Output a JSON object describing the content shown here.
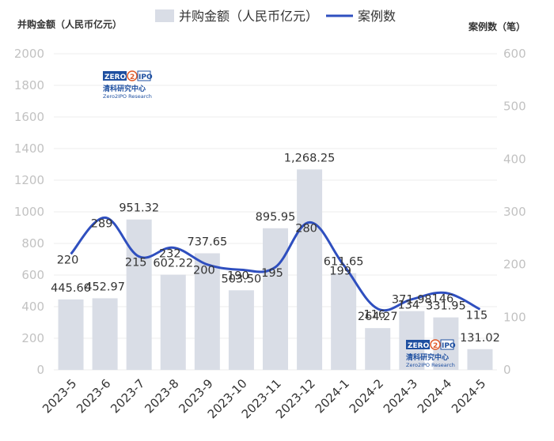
{
  "chart_data": {
    "type": "bar",
    "categories": [
      "2023-5",
      "2023-6",
      "2023-7",
      "2023-8",
      "2023-9",
      "2023-10",
      "2023-11",
      "2023-12",
      "2024-1",
      "2024-2",
      "2024-3",
      "2024-4",
      "2024-5"
    ],
    "series": [
      {
        "name": "并购金额（人民币亿元）",
        "type": "bar",
        "axis": "left",
        "values": [
          445.6,
          452.97,
          951.32,
          602.22,
          737.65,
          503.5,
          895.95,
          1268.25,
          611.65,
          264.27,
          371.98,
          331.95,
          131.02
        ],
        "labels": [
          "445.60",
          "452.97",
          "951.32",
          "602.22",
          "737.65",
          "503.50",
          "895.95",
          "1,268.25",
          "611.65",
          "264.27",
          "371.98",
          "331.95",
          "131.02"
        ]
      },
      {
        "name": "案例数",
        "type": "line",
        "axis": "right",
        "values": [
          220,
          289,
          215,
          232,
          200,
          190,
          195,
          280,
          199,
          116,
          134,
          146,
          115
        ],
        "labels": [
          "220",
          "289",
          "215",
          "232",
          "200",
          "190",
          "195",
          "280",
          "199",
          "116",
          "134",
          "146",
          "115"
        ]
      }
    ],
    "ylabel_left": "并购金额（人民币亿元）",
    "ylabel_right": "案例数（笔）",
    "ylim_left": [
      0,
      2000
    ],
    "ylim_right": [
      0,
      600
    ],
    "yticks_left": [
      "0",
      "200",
      "400",
      "600",
      "800",
      "1000",
      "1200",
      "1400",
      "1600",
      "1800",
      "2000"
    ],
    "yticks_right": [
      "0",
      "100",
      "200",
      "300",
      "400",
      "500",
      "600"
    ],
    "grid": true,
    "legend_position": "top-center",
    "colors": {
      "bar": "#d9dde6",
      "line": "#2f4fbf",
      "tick": "#c2c2c2"
    }
  },
  "watermark": {
    "logo_left": "ZERO",
    "logo_mid": "2",
    "logo_right": "IPO",
    "cn": "清科研究中心",
    "en": "Zero2IPO Research"
  }
}
